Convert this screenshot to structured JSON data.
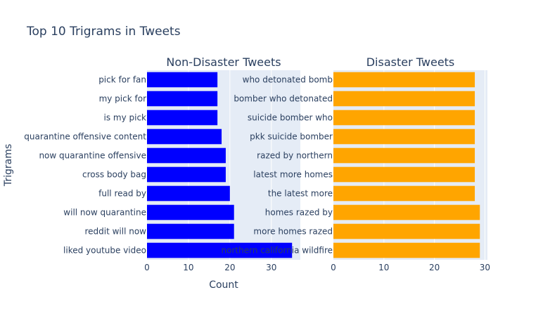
{
  "chart_data": {
    "type": "bar",
    "orientation": "horizontal",
    "title": "Top 10 Trigrams in Tweets",
    "ylabel": "Trigrams",
    "xlabel": "Count",
    "grid": true,
    "colors": {
      "left": "#0000ff",
      "right": "#ffa500",
      "plot_bg": "#e5ecf6",
      "text": "#2a3f5f"
    },
    "subplots": [
      {
        "title": "Non-Disaster Tweets",
        "xlim": [
          0,
          37
        ],
        "xticks": [
          0,
          10,
          20,
          30
        ],
        "categories": [
          "pick for fan",
          "my pick for",
          "is my pick",
          "quarantine offensive content",
          "now quarantine offensive",
          "cross body bag",
          "full read by",
          "will now quarantine",
          "reddit will now",
          "liked youtube video"
        ],
        "values": [
          17,
          17,
          17,
          18,
          19,
          19,
          20,
          21,
          21,
          35
        ]
      },
      {
        "title": "Disaster Tweets",
        "xlim": [
          0,
          30.5
        ],
        "xticks": [
          0,
          10,
          20,
          30
        ],
        "categories": [
          "who detonated bomb",
          "bomber who detonated",
          "suicide bomber who",
          "pkk suicide bomber",
          "razed by northern",
          "latest more homes",
          "the latest more",
          "homes razed by",
          "more homes razed",
          "northern california wildfire"
        ],
        "values": [
          28,
          28,
          28,
          28,
          28,
          28,
          28,
          29,
          29,
          29
        ]
      }
    ]
  }
}
